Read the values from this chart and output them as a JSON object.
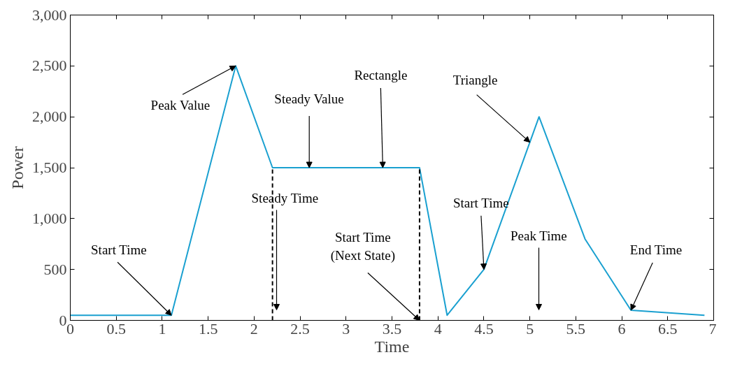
{
  "chart_data": {
    "type": "line",
    "xlabel": "Time",
    "ylabel": "Power",
    "xlim": [
      0,
      7
    ],
    "ylim": [
      0,
      3000
    ],
    "xticks": [
      0,
      0.5,
      1,
      1.5,
      2,
      2.5,
      3,
      3.5,
      4,
      4.5,
      5,
      5.5,
      6,
      6.5,
      7
    ],
    "yticks": [
      0,
      500,
      {
        "value": 1000,
        "label": "1,000"
      },
      {
        "value": 1500,
        "label": "1,500"
      },
      {
        "value": 2000,
        "label": "2,000"
      },
      {
        "value": 2500,
        "label": "2,500"
      },
      {
        "value": 3000,
        "label": "3,000"
      }
    ],
    "grid": false,
    "marker": "none",
    "series": [
      {
        "color": "#1aa0d0",
        "line_style": "solid",
        "x": [
          0,
          1.1,
          1.8,
          2.2,
          3.8,
          4.1,
          4.5,
          5.1,
          5.6,
          6.1,
          6.9
        ],
        "values": [
          50,
          50,
          2500,
          1500,
          1500,
          50,
          500,
          2000,
          800,
          100,
          50
        ]
      },
      {
        "color": "#000000",
        "line_style": "dashed",
        "x": [
          2.2,
          2.2
        ],
        "values": [
          0,
          1500
        ]
      },
      {
        "color": "#000000",
        "line_style": "dashed",
        "x": [
          3.8,
          3.8
        ],
        "values": [
          0,
          1500
        ]
      }
    ],
    "annotations": [
      {
        "text": "Start Time",
        "x": 1.1,
        "y": 50
      },
      {
        "text": "Peak Value",
        "x": 1.8,
        "y": 2500
      },
      {
        "text": "Steady Value",
        "x": 2.6,
        "y": 1500
      },
      {
        "text": "Rectangle",
        "x": 3.4,
        "y": 1500
      },
      {
        "text": "Triangle",
        "x": 5.0,
        "y": 1750
      },
      "Steady Time",
      {
        "text": "Start Time\n(Next State)",
        "x": 3.8,
        "y": 0
      },
      {
        "text": "Start Time",
        "x": 4.5,
        "y": 500
      },
      "Peak Time",
      {
        "text": "End Time",
        "x": 6.1,
        "y": 100
      }
    ]
  }
}
